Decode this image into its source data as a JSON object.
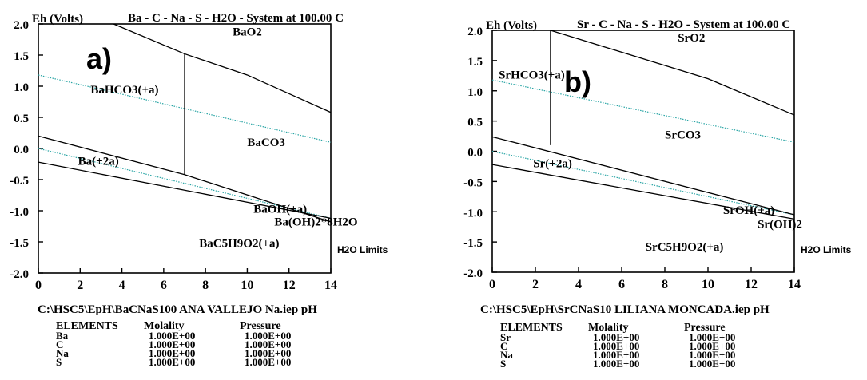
{
  "chart_data": [
    {
      "type": "line",
      "panel_label": "a)",
      "title": "Ba - C - Na - S - H2O - System at 100.00 C",
      "ylabel": "Eh (Volts)",
      "xlabel": "pH",
      "xlim": [
        0,
        14
      ],
      "ylim": [
        -2.0,
        2.0
      ],
      "x_ticks": [
        "0",
        "2",
        "4",
        "6",
        "8",
        "10",
        "12",
        "14"
      ],
      "y_ticks": [
        "2.0",
        "1.5",
        "1.0",
        "0.5",
        "0.0",
        "-0.5",
        "-1.0",
        "-1.5",
        "-2.0"
      ],
      "water_limit_label": "H2O Limits",
      "water_limits": [
        {
          "name": "upper",
          "x": [
            0,
            14
          ],
          "y": [
            1.18,
            0.1
          ]
        },
        {
          "name": "lower",
          "x": [
            0,
            14
          ],
          "y": [
            0.0,
            -1.12
          ]
        }
      ],
      "boundaries": [
        {
          "x": [
            3.6,
            7.0
          ],
          "y": [
            2.0,
            1.52
          ]
        },
        {
          "x": [
            7.0,
            10.0,
            14.0
          ],
          "y": [
            1.52,
            1.18,
            0.58
          ]
        },
        {
          "x": [
            7.0,
            7.0
          ],
          "y": [
            1.52,
            -0.42
          ]
        },
        {
          "x": [
            0,
            7.0
          ],
          "y": [
            0.2,
            -0.42
          ]
        },
        {
          "x": [
            7.0,
            14.0
          ],
          "y": [
            -0.42,
            -1.18
          ]
        },
        {
          "x": [
            0,
            14.0
          ],
          "y": [
            -0.22,
            -1.12
          ]
        }
      ],
      "regions": [
        {
          "label": "BaO2",
          "x": 9.3,
          "y": 1.88
        },
        {
          "label": "BaHCO3(+a)",
          "x": 2.5,
          "y": 0.95
        },
        {
          "label": "BaCO3",
          "x": 10.0,
          "y": 0.1
        },
        {
          "label": "Ba(+2a)",
          "x": 1.9,
          "y": -0.2
        },
        {
          "label": "BaOH(+a)",
          "x": 10.3,
          "y": -0.97
        },
        {
          "label": "Ba(OH)2*8H2O",
          "x": 11.3,
          "y": -1.17
        },
        {
          "label": "BaC5H9O2(+a)",
          "x": 7.7,
          "y": -1.52
        }
      ],
      "path_label": "C:\\HSC5\\EpH\\BaCNaS100 ANA VALLEJO Na.iep",
      "elements_table": {
        "headers": [
          "ELEMENTS",
          "Molality",
          "Pressure"
        ],
        "rows": [
          [
            "Ba",
            "1.000E+00",
            "1.000E+00"
          ],
          [
            "C",
            "1.000E+00",
            "1.000E+00"
          ],
          [
            "Na",
            "1.000E+00",
            "1.000E+00"
          ],
          [
            "S",
            "1.000E+00",
            "1.000E+00"
          ]
        ]
      }
    },
    {
      "type": "line",
      "panel_label": "b)",
      "title": "Sr - C - Na - S - H2O - System at 100.00 C",
      "ylabel": "Eh (Volts)",
      "xlabel": "pH",
      "xlim": [
        0,
        14
      ],
      "ylim": [
        -2.0,
        2.0
      ],
      "x_ticks": [
        "0",
        "2",
        "4",
        "6",
        "8",
        "10",
        "12",
        "14"
      ],
      "y_ticks": [
        "2.0",
        "1.5",
        "1.0",
        "0.5",
        "0.0",
        "-0.5",
        "-1.0",
        "-1.5",
        "-2.0"
      ],
      "water_limit_label": "H2O Limits",
      "water_limits": [
        {
          "name": "upper",
          "x": [
            0,
            14
          ],
          "y": [
            1.18,
            0.15
          ]
        },
        {
          "name": "lower",
          "x": [
            0,
            14
          ],
          "y": [
            0.0,
            -1.05
          ]
        }
      ],
      "boundaries": [
        {
          "x": [
            2.7,
            10.0,
            14.0
          ],
          "y": [
            2.0,
            1.2,
            0.6
          ]
        },
        {
          "x": [
            2.7,
            2.7
          ],
          "y": [
            2.0,
            0.1
          ]
        },
        {
          "x": [
            0,
            14.0
          ],
          "y": [
            0.24,
            -1.05
          ]
        },
        {
          "x": [
            0,
            14.0
          ],
          "y": [
            -0.22,
            -1.12
          ]
        }
      ],
      "regions": [
        {
          "label": "SrO2",
          "x": 8.6,
          "y": 1.88
        },
        {
          "label": "SrHCO3(+a)",
          "x": 0.3,
          "y": 1.27
        },
        {
          "label": "SrCO3",
          "x": 8.0,
          "y": 0.28
        },
        {
          "label": "Sr(+2a)",
          "x": 1.9,
          "y": -0.2
        },
        {
          "label": "SrOH(+a)",
          "x": 10.7,
          "y": -0.97
        },
        {
          "label": "Sr(OH)2",
          "x": 12.3,
          "y": -1.2
        },
        {
          "label": "SrC5H9O2(+a)",
          "x": 7.1,
          "y": -1.58
        }
      ],
      "path_label": "C:\\HSC5\\EpH\\SrCNaS10 LILIANA MONCADA.iep",
      "elements_table": {
        "headers": [
          "ELEMENTS",
          "Molality",
          "Pressure"
        ],
        "rows": [
          [
            "Sr",
            "1.000E+00",
            "1.000E+00"
          ],
          [
            "C",
            "1.000E+00",
            "1.000E+00"
          ],
          [
            "Na",
            "1.000E+00",
            "1.000E+00"
          ],
          [
            "S",
            "1.000E+00",
            "1.000E+00"
          ]
        ]
      }
    }
  ]
}
